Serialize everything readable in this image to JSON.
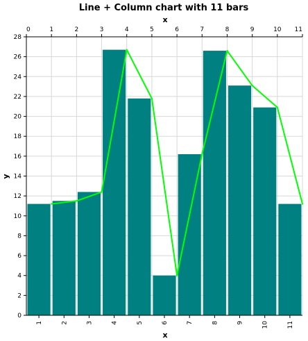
{
  "chart_data": {
    "type": "bar",
    "title": "Line + Column chart with 11 bars",
    "xlabel": "x",
    "ylabel": "y",
    "x2label": "x",
    "categories": [
      "1",
      "2",
      "3",
      "4",
      "5",
      "6",
      "7",
      "8",
      "9",
      "10",
      "11"
    ],
    "series": [
      {
        "type": "bar",
        "values": [
          11.2,
          11.5,
          12.4,
          26.7,
          21.8,
          4.0,
          16.2,
          26.6,
          23.1,
          20.9,
          11.2
        ]
      },
      {
        "type": "line",
        "values": [
          11.2,
          11.5,
          12.4,
          26.7,
          21.8,
          4.0,
          16.2,
          26.6,
          23.1,
          20.9,
          11.2
        ]
      }
    ],
    "ylim": [
      0,
      28
    ],
    "yticks": [
      0,
      2,
      4,
      6,
      8,
      10,
      12,
      14,
      16,
      18,
      20,
      22,
      24,
      26,
      28
    ],
    "x2lim": [
      0,
      11
    ],
    "x2ticks": [
      0,
      1,
      2,
      3,
      4,
      5,
      6,
      7,
      8,
      9,
      10,
      11
    ],
    "grid": true,
    "legend": "none",
    "colors": {
      "bar": "#008080",
      "line": "#00ff00",
      "grid": "#d8d8d8"
    }
  }
}
